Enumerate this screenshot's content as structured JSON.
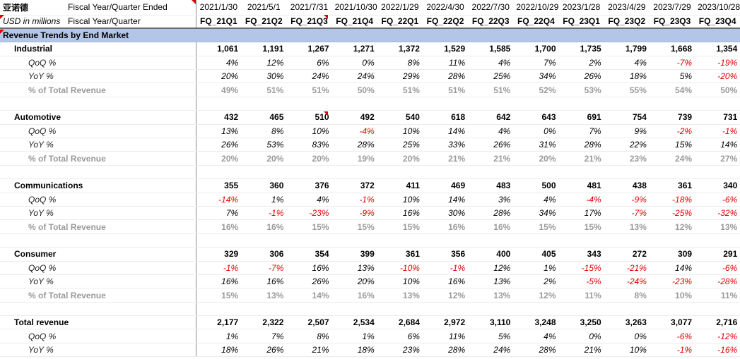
{
  "header": {
    "company": "亚诺德",
    "row1_label": "Fiscal Year/Quarter Ended",
    "units": "USD in millions",
    "row2_label": "Fiscal Year/Quarter",
    "dates": [
      "2021/1/30",
      "2021/5/1",
      "2021/7/31",
      "2021/10/30",
      "2022/1/29",
      "2022/4/30",
      "2022/7/30",
      "2022/10/29",
      "2023/1/28",
      "2023/4/29",
      "2023/7/29",
      "2023/10/28"
    ],
    "quarters": [
      "FQ_21Q1",
      "FQ_21Q2",
      "FQ_21Q3",
      "FQ_21Q4",
      "FQ_22Q1",
      "FQ_22Q2",
      "FQ_22Q3",
      "FQ_22Q4",
      "FQ_23Q1",
      "FQ_23Q2",
      "FQ_23Q3",
      "FQ_23Q4"
    ]
  },
  "section_title": "Revenue Trends by End Market",
  "segments": [
    {
      "name": "Industrial",
      "revenue": [
        "1,061",
        "1,191",
        "1,267",
        "1,271",
        "1,372",
        "1,529",
        "1,585",
        "1,700",
        "1,735",
        "1,799",
        "1,668",
        "1,354"
      ],
      "qoq_label": "QoQ %",
      "qoq": [
        "4%",
        "12%",
        "6%",
        "0%",
        "8%",
        "11%",
        "4%",
        "7%",
        "2%",
        "4%",
        "-7%",
        "-19%"
      ],
      "yoy_label": "YoY %",
      "yoy": [
        "20%",
        "30%",
        "24%",
        "24%",
        "29%",
        "28%",
        "25%",
        "34%",
        "26%",
        "18%",
        "5%",
        "-20%"
      ],
      "share_label": "% of Total Revenue",
      "share": [
        "49%",
        "51%",
        "51%",
        "50%",
        "51%",
        "51%",
        "51%",
        "52%",
        "53%",
        "55%",
        "54%",
        "50%"
      ]
    },
    {
      "name": "Automotive",
      "revenue": [
        "432",
        "465",
        "510",
        "492",
        "540",
        "618",
        "642",
        "643",
        "691",
        "754",
        "739",
        "731"
      ],
      "qoq_label": "QoQ %",
      "qoq": [
        "13%",
        "8%",
        "10%",
        "-4%",
        "10%",
        "14%",
        "4%",
        "0%",
        "7%",
        "9%",
        "-2%",
        "-1%"
      ],
      "yoy_label": "YoY %",
      "yoy": [
        "26%",
        "53%",
        "83%",
        "28%",
        "25%",
        "33%",
        "26%",
        "31%",
        "28%",
        "22%",
        "15%",
        "14%"
      ],
      "share_label": "% of Total Revenue",
      "share": [
        "20%",
        "20%",
        "20%",
        "19%",
        "20%",
        "21%",
        "21%",
        "20%",
        "21%",
        "23%",
        "24%",
        "27%"
      ]
    },
    {
      "name": "Communications",
      "revenue": [
        "355",
        "360",
        "376",
        "372",
        "411",
        "469",
        "483",
        "500",
        "481",
        "438",
        "361",
        "340"
      ],
      "qoq_label": "QoQ %",
      "qoq": [
        "-14%",
        "1%",
        "4%",
        "-1%",
        "10%",
        "14%",
        "3%",
        "4%",
        "-4%",
        "-9%",
        "-18%",
        "-6%"
      ],
      "yoy_label": "YoY %",
      "yoy": [
        "7%",
        "-1%",
        "-23%",
        "-9%",
        "16%",
        "30%",
        "28%",
        "34%",
        "17%",
        "-7%",
        "-25%",
        "-32%"
      ],
      "share_label": "% of Total Revenue",
      "share": [
        "16%",
        "16%",
        "15%",
        "15%",
        "15%",
        "16%",
        "16%",
        "15%",
        "15%",
        "13%",
        "12%",
        "13%"
      ]
    },
    {
      "name": "Consumer",
      "revenue": [
        "329",
        "306",
        "354",
        "399",
        "361",
        "356",
        "400",
        "405",
        "343",
        "272",
        "309",
        "291"
      ],
      "qoq_label": "QoQ %",
      "qoq": [
        "-1%",
        "-7%",
        "16%",
        "13%",
        "-10%",
        "-1%",
        "12%",
        "1%",
        "-15%",
        "-21%",
        "14%",
        "-6%"
      ],
      "yoy_label": "YoY %",
      "yoy": [
        "16%",
        "16%",
        "26%",
        "20%",
        "10%",
        "16%",
        "13%",
        "2%",
        "-5%",
        "-24%",
        "-23%",
        "-28%"
      ],
      "share_label": "% of Total Revenue",
      "share": [
        "15%",
        "13%",
        "14%",
        "16%",
        "13%",
        "12%",
        "13%",
        "12%",
        "11%",
        "8%",
        "10%",
        "11%"
      ]
    }
  ],
  "total": {
    "name": "Total revenue",
    "revenue": [
      "2,177",
      "2,322",
      "2,507",
      "2,534",
      "2,684",
      "2,972",
      "3,110",
      "3,248",
      "3,250",
      "3,263",
      "3,077",
      "2,716"
    ],
    "qoq_label": "QoQ %",
    "qoq": [
      "1%",
      "7%",
      "8%",
      "1%",
      "6%",
      "11%",
      "5%",
      "4%",
      "0%",
      "0%",
      "-6%",
      "-12%"
    ],
    "yoy_label": "YoY %",
    "yoy": [
      "18%",
      "26%",
      "21%",
      "18%",
      "23%",
      "28%",
      "24%",
      "28%",
      "21%",
      "10%",
      "-1%",
      "-16%"
    ]
  },
  "colors": {
    "section_fill": "#b4c6e7",
    "negative": "#e00000",
    "share_text": "#9a9a9a"
  }
}
